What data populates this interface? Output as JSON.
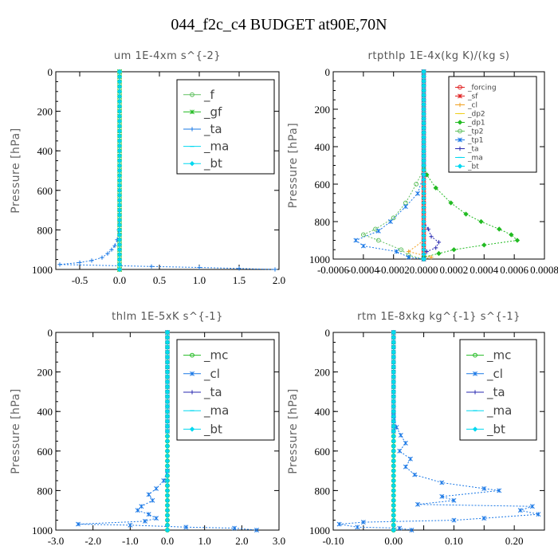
{
  "title": "044_f2c_c4  BUDGET at90E,70N",
  "colors": {
    "green": "#22bb22",
    "blue": "#1a78e6",
    "navy": "#2a2ab0",
    "cyan": "#00d8f0",
    "red": "#e02020",
    "orange": "#f0a020",
    "lightgreen": "#60c060"
  },
  "chart_data": [
    {
      "type": "line",
      "title": "um   1E-4xm s^{-2}",
      "ylabel": "Pressure [hPa]",
      "xlim": [
        -0.8,
        2.0
      ],
      "ylim": [
        1000,
        0
      ],
      "xticks": [
        -0.5,
        0.0,
        0.5,
        1.0,
        1.5,
        2.0
      ],
      "xtick_labels": [
        "-0.5",
        "0.0",
        "0.5",
        "1.0",
        "1.5",
        "2.0"
      ],
      "yticks": [
        0,
        200,
        400,
        600,
        800,
        1000
      ],
      "ytick_labels": [
        "0",
        "200",
        "400",
        "600",
        "800",
        "1000"
      ],
      "legend": [
        "_f",
        "_gf",
        "_ta",
        "_ma",
        "_bt"
      ],
      "legend_position": "top-right",
      "series": [
        {
          "name": "_f",
          "color": "#60c060",
          "points": [
            [
              0.0,
              0
            ],
            [
              0.0,
              1000
            ]
          ]
        },
        {
          "name": "_gf",
          "color": "#22bb22",
          "points": [
            [
              0.0,
              0
            ],
            [
              0.0,
              1000
            ]
          ]
        },
        {
          "name": "_ta",
          "color": "#1a78e6",
          "points": [
            [
              0,
              0
            ],
            [
              0,
              600
            ],
            [
              -0.01,
              800
            ],
            [
              -0.03,
              850
            ],
            [
              -0.06,
              880
            ],
            [
              -0.1,
              900
            ],
            [
              -0.15,
              920
            ],
            [
              -0.22,
              940
            ],
            [
              -0.35,
              955
            ],
            [
              -0.5,
              965
            ],
            [
              -0.75,
              975
            ],
            [
              0.4,
              985
            ],
            [
              1.0,
              990
            ],
            [
              1.5,
              995
            ],
            [
              1.95,
              1000
            ]
          ]
        },
        {
          "name": "_ma",
          "color": "#00d8f0",
          "points": [
            [
              0.0,
              0
            ],
            [
              0.0,
              1000
            ]
          ]
        },
        {
          "name": "_bt",
          "color": "#00d8f0",
          "points": [
            [
              0.0,
              0
            ],
            [
              0.0,
              1000
            ]
          ]
        }
      ]
    },
    {
      "type": "line",
      "title": "rtpthlp   1E-4x(kg K)/(kg s)",
      "ylabel": "Pressure [hPa]",
      "xlim": [
        -0.0006,
        0.0008
      ],
      "ylim": [
        1000,
        0
      ],
      "xticks": [
        -0.0006,
        -0.0004,
        -0.0002,
        0.0,
        0.0002,
        0.0004,
        0.0006,
        0.0008
      ],
      "xtick_labels": [
        "-0.0006",
        "-0.0004",
        "-0.0002",
        "0.0000",
        "0.0002",
        "0.0004",
        "0.0006",
        "0.0008"
      ],
      "yticks": [
        0,
        200,
        400,
        600,
        800,
        1000
      ],
      "ytick_labels": [
        "0",
        "200",
        "400",
        "600",
        "800",
        "1000"
      ],
      "legend": [
        "_forcing",
        "_sf",
        "_cl",
        "_dp2",
        "_dp1",
        "_tp2",
        "_tp1",
        "_ta",
        "_ma",
        "_bt"
      ],
      "legend_position": "top-right",
      "series": [
        {
          "name": "_forcing",
          "color": "#e02020",
          "points": [
            [
              0,
              0
            ],
            [
              0,
              1000
            ]
          ]
        },
        {
          "name": "_sf",
          "color": "#e02020",
          "points": [
            [
              0,
              0
            ],
            [
              0,
              1000
            ]
          ]
        },
        {
          "name": "_cl",
          "color": "#f0a020",
          "points": [
            [
              0,
              0
            ],
            [
              0,
              900
            ],
            [
              -0.0001,
              960
            ],
            [
              5e-05,
              990
            ],
            [
              0,
              1000
            ]
          ]
        },
        {
          "name": "_dp2",
          "color": "#f0d020",
          "points": [
            [
              0,
              0
            ],
            [
              0,
              1000
            ]
          ]
        },
        {
          "name": "_dp1",
          "color": "#22bb22",
          "points": [
            [
              0,
              0
            ],
            [
              0,
              500
            ],
            [
              2e-05,
              550
            ],
            [
              8e-05,
              620
            ],
            [
              0.00018,
              700
            ],
            [
              0.00028,
              760
            ],
            [
              0.00038,
              800
            ],
            [
              0.0005,
              840
            ],
            [
              0.00058,
              870
            ],
            [
              0.00062,
              900
            ],
            [
              0.0004,
              925
            ],
            [
              0.0002,
              950
            ],
            [
              0.0001,
              970
            ],
            [
              0.0,
              990
            ]
          ]
        },
        {
          "name": "_tp2",
          "color": "#60c060",
          "points": [
            [
              0,
              0
            ],
            [
              0,
              520
            ],
            [
              -5e-05,
              600
            ],
            [
              -0.00012,
              700
            ],
            [
              -0.0002,
              780
            ],
            [
              -0.00032,
              840
            ],
            [
              -0.0004,
              870
            ],
            [
              -0.0003,
              900
            ],
            [
              -0.00015,
              950
            ],
            [
              -0.0001,
              980
            ],
            [
              0,
              1000
            ]
          ]
        },
        {
          "name": "_tp1",
          "color": "#1a78e6",
          "points": [
            [
              0,
              0
            ],
            [
              0,
              550
            ],
            [
              -4e-05,
              650
            ],
            [
              -0.00012,
              720
            ],
            [
              -0.00022,
              800
            ],
            [
              -0.0003,
              850
            ],
            [
              -0.00045,
              900
            ],
            [
              -0.0004,
              930
            ],
            [
              -0.00018,
              960
            ],
            [
              -0.0001,
              990
            ],
            [
              0,
              1000
            ]
          ]
        },
        {
          "name": "_ta",
          "color": "#2a2ab0",
          "points": [
            [
              0,
              0
            ],
            [
              0,
              800
            ],
            [
              3e-05,
              840
            ],
            [
              5e-05,
              880
            ],
            [
              0.0001,
              910
            ],
            [
              8e-05,
              940
            ],
            [
              2e-05,
              960
            ],
            [
              0,
              1000
            ]
          ]
        },
        {
          "name": "_ma",
          "color": "#00d8f0",
          "points": [
            [
              0,
              0
            ],
            [
              0,
              1000
            ]
          ]
        },
        {
          "name": "_bt",
          "color": "#00d8f0",
          "points": [
            [
              0,
              0
            ],
            [
              0,
              1000
            ]
          ]
        }
      ]
    },
    {
      "type": "line",
      "title": "thlm   1E-5xK s^{-1}",
      "ylabel": "Pressure [hPa]",
      "xlim": [
        -3.0,
        3.0
      ],
      "ylim": [
        1000,
        0
      ],
      "xticks": [
        -3.0,
        -2.0,
        -1.0,
        0.0,
        1.0,
        2.0,
        3.0
      ],
      "xtick_labels": [
        "-3.0",
        "-2.0",
        "-1.0",
        "0.0",
        "1.0",
        "2.0",
        "3.0"
      ],
      "yticks": [
        0,
        200,
        400,
        600,
        800,
        1000
      ],
      "ytick_labels": [
        "0",
        "200",
        "400",
        "600",
        "800",
        "1000"
      ],
      "legend": [
        "_mc",
        "_cl",
        "_ta",
        "_ma",
        "_bt"
      ],
      "legend_position": "top-right",
      "series": [
        {
          "name": "_mc",
          "color": "#22bb22",
          "points": [
            [
              0,
              0
            ],
            [
              0,
              1000
            ]
          ]
        },
        {
          "name": "_cl",
          "color": "#1a78e6",
          "points": [
            [
              0,
              0
            ],
            [
              0,
              700
            ],
            [
              -0.1,
              750
            ],
            [
              -0.3,
              790
            ],
            [
              -0.5,
              820
            ],
            [
              -0.4,
              850
            ],
            [
              -0.7,
              880
            ],
            [
              -0.8,
              900
            ],
            [
              -0.5,
              920
            ],
            [
              -0.3,
              940
            ],
            [
              -0.6,
              955
            ],
            [
              -2.4,
              970
            ],
            [
              -1.0,
              975
            ],
            [
              0.5,
              985
            ],
            [
              1.8,
              990
            ],
            [
              2.4,
              1000
            ]
          ]
        },
        {
          "name": "_ta",
          "color": "#2a2ab0",
          "points": [
            [
              0,
              0
            ],
            [
              0,
              1000
            ]
          ]
        },
        {
          "name": "_ma",
          "color": "#00d8f0",
          "points": [
            [
              0,
              0
            ],
            [
              0,
              1000
            ]
          ]
        },
        {
          "name": "_bt",
          "color": "#00d8f0",
          "points": [
            [
              0,
              0
            ],
            [
              0,
              1000
            ]
          ]
        }
      ]
    },
    {
      "type": "line",
      "title": "rtm   1E-8xkg kg^{-1} s^{-1}",
      "ylabel": "Pressure [hPa]",
      "xlim": [
        -0.1,
        0.25
      ],
      "ylim": [
        1000,
        0
      ],
      "xticks": [
        -0.1,
        -0.05,
        0.0,
        0.05,
        0.1,
        0.15,
        0.2
      ],
      "xtick_labels": [
        "-0.10",
        "",
        "0.00",
        "",
        "0.10",
        "",
        "0.20"
      ],
      "yticks": [
        0,
        200,
        400,
        600,
        800,
        1000
      ],
      "ytick_labels": [
        "0",
        "200",
        "400",
        "600",
        "800",
        "1000"
      ],
      "legend": [
        "_mc",
        "_cl",
        "_ta",
        "_ma",
        "_bt"
      ],
      "legend_position": "top-right",
      "series": [
        {
          "name": "_mc",
          "color": "#22bb22",
          "points": [
            [
              0,
              0
            ],
            [
              0,
              1000
            ]
          ]
        },
        {
          "name": "_cl",
          "color": "#1a78e6",
          "points": [
            [
              0,
              0
            ],
            [
              0,
              420
            ],
            [
              0.005,
              480
            ],
            [
              0.012,
              520
            ],
            [
              0.02,
              560
            ],
            [
              0.01,
              600
            ],
            [
              0.028,
              640
            ],
            [
              0.02,
              680
            ],
            [
              0.035,
              720
            ],
            [
              0.08,
              760
            ],
            [
              0.15,
              790
            ],
            [
              0.175,
              800
            ],
            [
              0.08,
              830
            ],
            [
              0.1,
              850
            ],
            [
              0.04,
              870
            ],
            [
              0.23,
              880
            ],
            [
              0.21,
              900
            ],
            [
              0.24,
              920
            ],
            [
              0.15,
              940
            ],
            [
              0.1,
              950
            ],
            [
              -0.05,
              960
            ],
            [
              -0.09,
              970
            ],
            [
              -0.06,
              985
            ],
            [
              0.01,
              990
            ],
            [
              0.03,
              1000
            ]
          ]
        },
        {
          "name": "_ta",
          "color": "#2a2ab0",
          "points": [
            [
              0,
              0
            ],
            [
              0,
              1000
            ]
          ]
        },
        {
          "name": "_ma",
          "color": "#00d8f0",
          "points": [
            [
              0,
              0
            ],
            [
              0,
              1000
            ]
          ]
        },
        {
          "name": "_bt",
          "color": "#00d8f0",
          "points": [
            [
              0,
              0
            ],
            [
              0,
              1000
            ]
          ]
        }
      ]
    }
  ]
}
